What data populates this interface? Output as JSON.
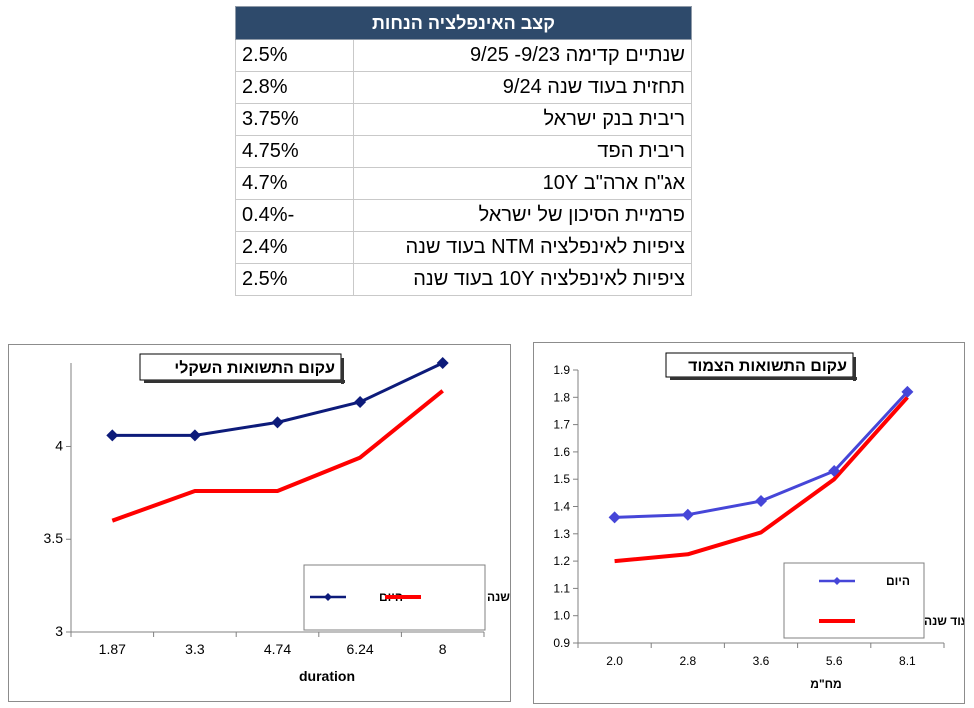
{
  "table": {
    "title": "קצב האינפלציה הנחות",
    "rows": [
      {
        "label": "שנתיים קדימה 9/23- 9/25",
        "value": "2.5%"
      },
      {
        "label": "תחזית בעוד שנה 9/24",
        "value": "2.8%"
      },
      {
        "label": "ריבית בנק ישראל",
        "value": "3.75%"
      },
      {
        "label": "ריבית הפד",
        "value": "4.75%"
      },
      {
        "label": "אג\"ח ארה\"ב 10Y",
        "value": "4.7%"
      },
      {
        "label": "פרמיית הסיכון של ישראל",
        "value": "-0.4%"
      },
      {
        "label": "ציפיות לאינפלציה NTM בעוד שנה",
        "value": "2.4%"
      },
      {
        "label": "ציפיות לאינפלציה 10Y בעוד שנה",
        "value": "2.5%"
      }
    ]
  },
  "chart_data": [
    {
      "type": "line",
      "title": "עקום התשואות השקלי",
      "xlabel": "duration",
      "ylabel": "",
      "categories": [
        "1.87",
        "3.3",
        "4.74",
        "6.24",
        "8"
      ],
      "yticks": [
        "3",
        "3.5",
        "4"
      ],
      "ylim": [
        3,
        4.45
      ],
      "series": [
        {
          "name": "היום",
          "values": [
            4.06,
            4.06,
            4.13,
            4.24,
            4.45
          ],
          "color": "#0d1b7a",
          "markers": true
        },
        {
          "name": "בעוד שנה",
          "values": [
            3.6,
            3.76,
            3.76,
            3.94,
            4.3
          ],
          "color": "#ff0000",
          "markers": false
        }
      ],
      "legend": "bottom-right",
      "grid": false
    },
    {
      "type": "line",
      "title": "עקום התשואות הצמוד",
      "xlabel": "מח\"מ",
      "ylabel": "",
      "categories": [
        "2.0",
        "2.8",
        "3.6",
        "5.6",
        "8.1"
      ],
      "yticks": [
        "0.9",
        "1.0",
        "1.1",
        "1.2",
        "1.3",
        "1.4",
        "1.5",
        "1.6",
        "1.7",
        "1.8",
        "1.9"
      ],
      "ylim": [
        0.9,
        1.9
      ],
      "series": [
        {
          "name": "היום",
          "values": [
            1.36,
            1.37,
            1.42,
            1.53,
            1.82
          ],
          "color": "#4646d8",
          "markers": true
        },
        {
          "name": "בעוד שנה",
          "values": [
            1.2,
            1.225,
            1.305,
            1.5,
            1.8
          ],
          "color": "#ff0000",
          "markers": false
        }
      ],
      "legend": "bottom-right",
      "grid": false
    }
  ]
}
